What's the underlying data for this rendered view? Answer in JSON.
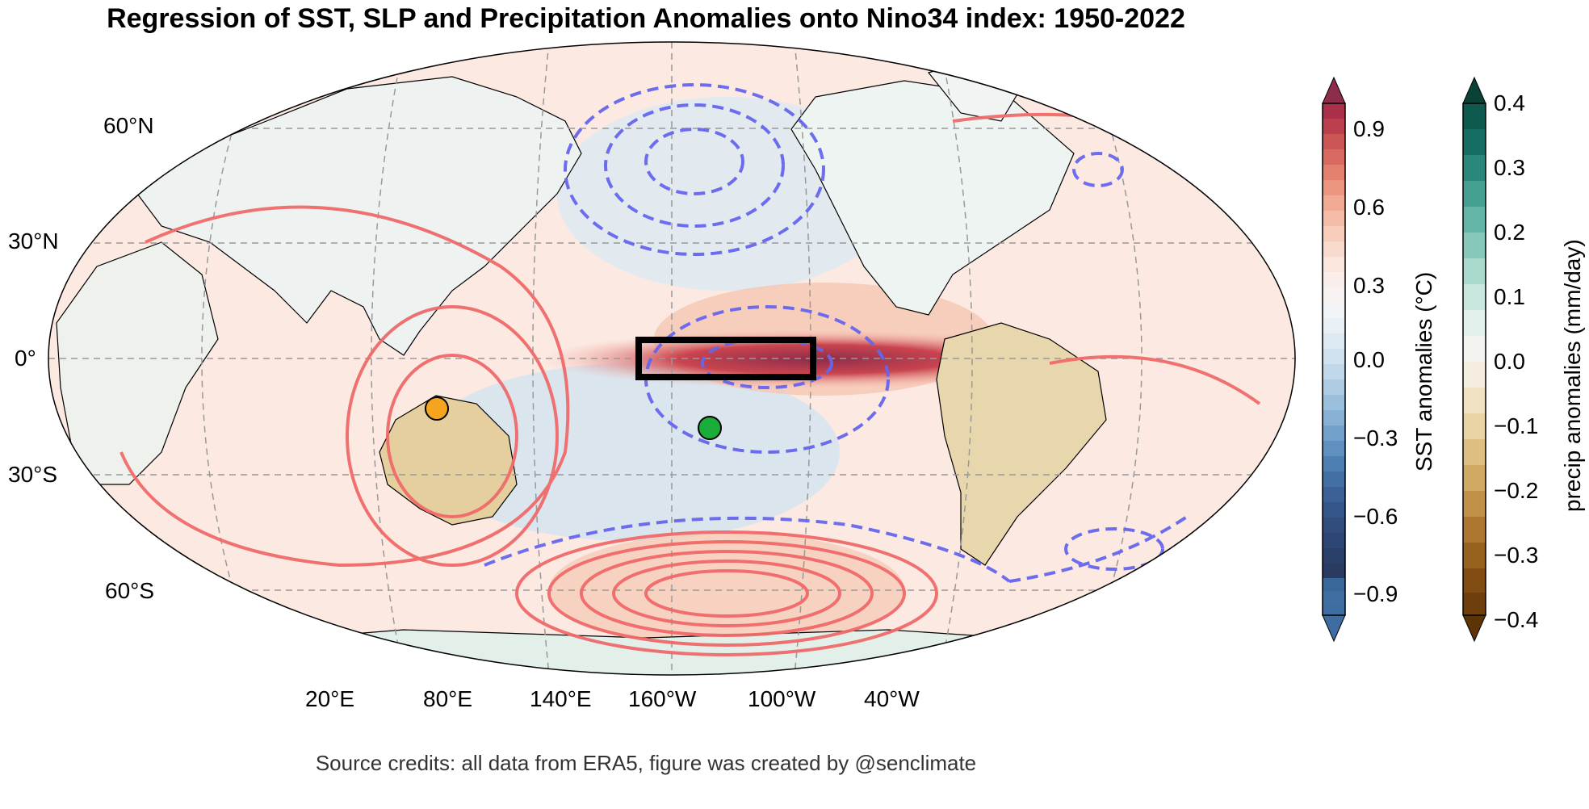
{
  "title": "Regression of SST, SLP and Precipitation Anomalies onto Nino34 index: 1950-2022",
  "credit": "Source credits: all data from ERA5, figure was created by @senclimate",
  "colors": {
    "positive_slp": "#f06a6a",
    "negative_slp": "#6666ee",
    "nino_box": "#000000",
    "marker_orange": "#f4a41e",
    "marker_green": "#1aad3a"
  },
  "map": {
    "lat_labels": [
      "60°N",
      "30°N",
      "0°",
      "30°S",
      "60°S"
    ],
    "lon_labels": [
      "20°E",
      "80°E",
      "140°E",
      "160°W",
      "100°W",
      "40°W"
    ],
    "markers": [
      {
        "name": "orange-marker",
        "lat": -12,
        "lon": 128
      },
      {
        "name": "green-marker",
        "lat": -17,
        "lon": 211
      }
    ],
    "nino34_box": {
      "lat": [
        -5,
        5
      ],
      "lon_w": [
        170,
        120
      ]
    }
  },
  "sst_colorbar": {
    "label": "SST anomalies (°C)",
    "ticks": [
      "0.9",
      "0.6",
      "0.3",
      "0.0",
      "−0.3",
      "−0.6",
      "−0.9"
    ]
  },
  "precip_colorbar": {
    "label": "precip anomalies (mm/day)",
    "ticks": [
      "0.4",
      "0.3",
      "0.2",
      "0.1",
      "0.0",
      "−0.1",
      "−0.2",
      "−0.3",
      "−0.4"
    ]
  }
}
